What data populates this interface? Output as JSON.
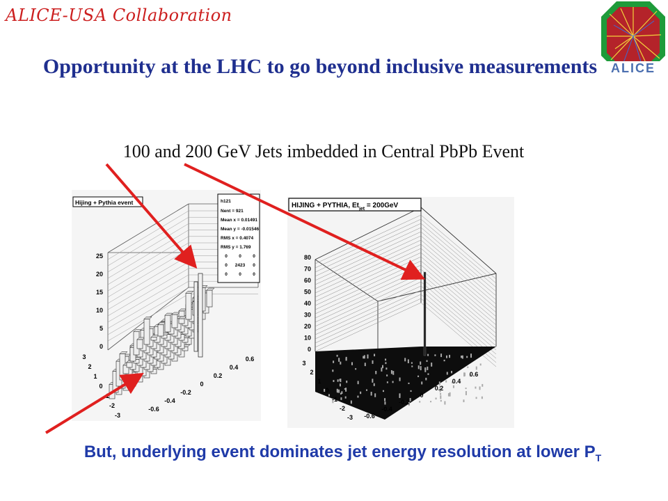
{
  "header": {
    "collaboration": "ALICE-USA Collaboration",
    "logo_text": "ALICE"
  },
  "slide": {
    "title": "Opportunity at the LHC to go beyond inclusive measurements",
    "subtitle": "100 and 200 GeV Jets imbedded in Central PbPb Event",
    "footer": "But, underlying event dominates jet energy resolution at lower P",
    "footer_sub": "T"
  },
  "plot_left": {
    "legend": "Hijing + Pythia event",
    "stats": {
      "name": "h121",
      "rows": [
        [
          "Nent = 921"
        ],
        [
          "Mean x = 0.01491"
        ],
        [
          "Mean y = -0.01546"
        ],
        [
          "RMS x = 0.4074"
        ],
        [
          "RMS y = 1.769"
        ],
        [
          "0",
          "0",
          "0"
        ],
        [
          "0",
          "2423",
          "0"
        ],
        [
          "0",
          "0",
          "0"
        ]
      ]
    },
    "z_ticks": [
      "25",
      "20",
      "15",
      "10",
      "5",
      "0"
    ],
    "y_ticks": [
      "3",
      "2",
      "1",
      "0",
      "-1",
      "-2",
      "-3"
    ],
    "x_ticks": [
      "-0.6",
      "-0.4",
      "-0.2",
      "0",
      "0.2",
      "0.4",
      "0.6"
    ]
  },
  "plot_right": {
    "legend": "HIJING + PYTHIA, Et",
    "legend_sub": "jet",
    "legend_tail": " = 200GeV",
    "z_ticks": [
      "80",
      "70",
      "60",
      "50",
      "40",
      "30",
      "20",
      "10",
      "0"
    ],
    "y_ticks": [
      "3",
      "2",
      "1",
      "0",
      "-1",
      "-2",
      "-3"
    ],
    "x_ticks": [
      "-0.6",
      "-0.4",
      "-0.2",
      "0",
      "0.2",
      "0.4",
      "0.6"
    ]
  },
  "colors": {
    "collab": "#cc1f1f",
    "title": "#1f2f8f",
    "footer": "#1f3aa8",
    "arrow": "#e0201f"
  }
}
